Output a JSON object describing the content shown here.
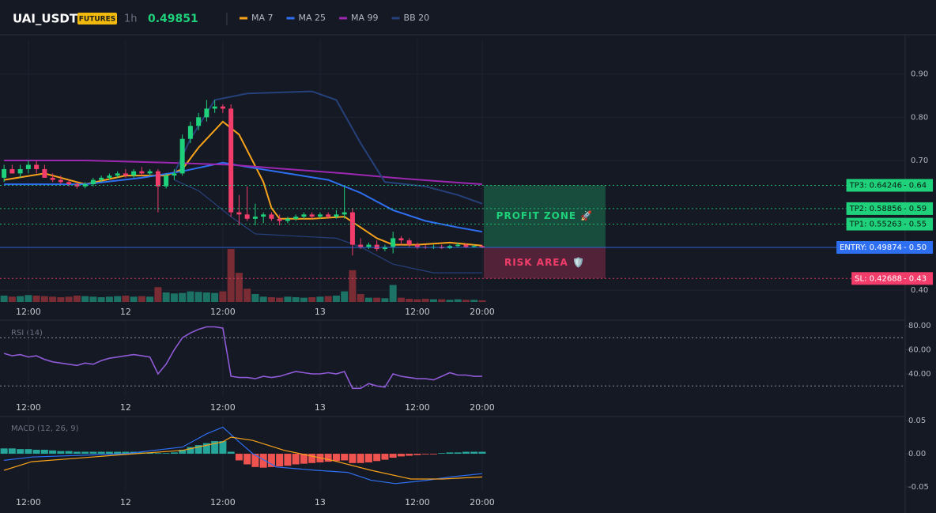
{
  "chart_data": [
    {
      "type": "candlestick",
      "title": "UAI_USDT",
      "badge": "FUTURES",
      "interval": "1h",
      "last_price": 0.49851,
      "x": [
        0,
        1,
        2,
        3,
        4,
        5,
        6,
        7,
        8,
        9,
        10,
        11,
        12,
        13,
        14,
        15,
        16,
        17,
        18,
        19,
        20,
        21,
        22,
        23,
        24,
        25,
        26,
        27,
        28,
        29,
        30,
        31,
        32,
        33,
        34,
        35,
        36,
        37,
        38,
        39,
        40,
        41,
        42,
        43,
        44,
        45,
        46,
        47,
        48,
        49,
        50,
        51,
        52,
        53,
        54,
        55,
        56,
        57,
        58,
        59
      ],
      "open": [
        0.66,
        0.68,
        0.67,
        0.68,
        0.69,
        0.68,
        0.66,
        0.655,
        0.65,
        0.645,
        0.64,
        0.645,
        0.655,
        0.66,
        0.665,
        0.67,
        0.665,
        0.675,
        0.67,
        0.675,
        0.64,
        0.665,
        0.67,
        0.75,
        0.78,
        0.8,
        0.82,
        0.825,
        0.82,
        0.58,
        0.575,
        0.565,
        0.57,
        0.575,
        0.565,
        0.56,
        0.565,
        0.57,
        0.575,
        0.57,
        0.575,
        0.57,
        0.575,
        0.58,
        0.505,
        0.5,
        0.505,
        0.495,
        0.5,
        0.52,
        0.515,
        0.505,
        0.5,
        0.498,
        0.5,
        0.497,
        0.502,
        0.505,
        0.5,
        0.502
      ],
      "high": [
        0.69,
        0.69,
        0.69,
        0.7,
        0.7,
        0.69,
        0.67,
        0.665,
        0.655,
        0.65,
        0.65,
        0.66,
        0.665,
        0.67,
        0.675,
        0.68,
        0.68,
        0.685,
        0.68,
        0.68,
        0.67,
        0.68,
        0.76,
        0.79,
        0.81,
        0.84,
        0.84,
        0.83,
        0.83,
        0.62,
        0.64,
        0.6,
        0.58,
        0.58,
        0.575,
        0.57,
        0.575,
        0.58,
        0.58,
        0.58,
        0.58,
        0.585,
        0.64,
        0.59,
        0.52,
        0.51,
        0.515,
        0.505,
        0.535,
        0.525,
        0.52,
        0.51,
        0.505,
        0.505,
        0.505,
        0.505,
        0.51,
        0.508,
        0.505,
        0.505
      ],
      "low": [
        0.65,
        0.67,
        0.66,
        0.67,
        0.67,
        0.66,
        0.65,
        0.645,
        0.64,
        0.635,
        0.635,
        0.64,
        0.65,
        0.655,
        0.66,
        0.66,
        0.66,
        0.665,
        0.665,
        0.58,
        0.635,
        0.655,
        0.665,
        0.74,
        0.77,
        0.79,
        0.81,
        0.81,
        0.57,
        0.55,
        0.56,
        0.55,
        0.555,
        0.56,
        0.55,
        0.555,
        0.56,
        0.565,
        0.565,
        0.565,
        0.565,
        0.565,
        0.565,
        0.48,
        0.495,
        0.495,
        0.49,
        0.49,
        0.485,
        0.505,
        0.5,
        0.495,
        0.495,
        0.495,
        0.495,
        0.495,
        0.498,
        0.497,
        0.498,
        0.497
      ],
      "close": [
        0.68,
        0.67,
        0.68,
        0.69,
        0.68,
        0.66,
        0.655,
        0.65,
        0.645,
        0.64,
        0.645,
        0.655,
        0.66,
        0.665,
        0.67,
        0.665,
        0.675,
        0.67,
        0.675,
        0.64,
        0.665,
        0.67,
        0.75,
        0.78,
        0.8,
        0.82,
        0.825,
        0.82,
        0.58,
        0.575,
        0.565,
        0.57,
        0.575,
        0.565,
        0.56,
        0.565,
        0.57,
        0.575,
        0.57,
        0.575,
        0.57,
        0.575,
        0.58,
        0.505,
        0.5,
        0.505,
        0.495,
        0.5,
        0.52,
        0.515,
        0.505,
        0.5,
        0.498,
        0.5,
        0.497,
        0.502,
        0.505,
        0.5,
        0.502,
        0.4985
      ],
      "volume": [
        12,
        10,
        11,
        13,
        12,
        11,
        10,
        9,
        10,
        12,
        11,
        10,
        9,
        10,
        11,
        12,
        10,
        11,
        10,
        28,
        18,
        16,
        17,
        20,
        19,
        18,
        17,
        20,
        100,
        55,
        25,
        15,
        10,
        9,
        8,
        10,
        9,
        8,
        9,
        10,
        11,
        12,
        20,
        60,
        15,
        8,
        8,
        7,
        32,
        8,
        6,
        5,
        6,
        5,
        5,
        4,
        5,
        4,
        4,
        3
      ],
      "up_color": "#1fd17a",
      "down_color": "#f23d6b",
      "volume_up_color": "#1d7266",
      "volume_down_color": "#7a2c35",
      "xlim": [
        -0.5,
        111
      ],
      "ylim": [
        0.3725,
        0.98
      ],
      "vlim": [
        0,
        100
      ],
      "xticks": [
        {
          "value": 3,
          "label": "12:00"
        },
        {
          "value": 15,
          "label": "12"
        },
        {
          "value": 27,
          "label": "12:00"
        },
        {
          "value": 39,
          "label": "13"
        },
        {
          "value": 51,
          "label": "12:00"
        },
        {
          "value": 59,
          "label": "20:00"
        }
      ],
      "yticks": [
        {
          "value": 0.4,
          "label": "0.40"
        },
        {
          "value": 0.7,
          "label": "0.70"
        },
        {
          "value": 0.8,
          "label": "0.80"
        },
        {
          "value": 0.9,
          "label": "0.90"
        }
      ],
      "grid": true,
      "series": [
        {
          "name": "MA 7",
          "color": "#f7a21b",
          "x": [
            0,
            5,
            10,
            15,
            20,
            22,
            24,
            27,
            29,
            32,
            33,
            34,
            38,
            42,
            44,
            46,
            48,
            51,
            55,
            59
          ],
          "values": [
            0.655,
            0.67,
            0.645,
            0.665,
            0.665,
            0.68,
            0.73,
            0.79,
            0.76,
            0.65,
            0.59,
            0.565,
            0.565,
            0.57,
            0.545,
            0.52,
            0.505,
            0.505,
            0.51,
            0.503
          ]
        },
        {
          "name": "MA 25",
          "color": "#2e6ff2",
          "x": [
            0,
            10,
            17,
            22,
            27,
            30,
            35,
            40,
            44,
            48,
            52,
            56,
            59
          ],
          "values": [
            0.645,
            0.645,
            0.66,
            0.675,
            0.695,
            0.685,
            0.67,
            0.655,
            0.625,
            0.585,
            0.56,
            0.545,
            0.535
          ]
        },
        {
          "name": "MA 99",
          "color": "#9c27b0",
          "x": [
            0,
            10,
            20,
            28,
            35,
            42,
            48,
            55,
            59
          ],
          "values": [
            0.7,
            0.7,
            0.695,
            0.69,
            0.68,
            0.67,
            0.66,
            0.65,
            0.645
          ]
        },
        {
          "name": "BB 20",
          "color": "#26407a",
          "x": [
            21,
            23,
            26,
            30,
            38,
            41,
            44,
            47,
            52,
            56,
            59
          ],
          "values": [
            0.67,
            0.75,
            0.84,
            0.855,
            0.86,
            0.84,
            0.74,
            0.65,
            0.64,
            0.62,
            0.6
          ],
          "lower_x": [
            21,
            24,
            28,
            31,
            36,
            41,
            44,
            48,
            53,
            59
          ],
          "lower_values": [
            0.655,
            0.63,
            0.57,
            0.53,
            0.525,
            0.52,
            0.5,
            0.46,
            0.44,
            0.44
          ]
        }
      ],
      "levels": [
        {
          "label": "TP3: 0.64246",
          "axis_label": "- 0.64",
          "value": 0.64246,
          "color": "#1fd17a",
          "style": "dotted"
        },
        {
          "label": "TP2: 0.58856",
          "axis_label": "- 0.59",
          "value": 0.58856,
          "color": "#1fd17a",
          "style": "dotted"
        },
        {
          "label": "TP1: 0.55263",
          "axis_label": "- 0.55",
          "value": 0.55263,
          "color": "#1fd17a",
          "style": "dotted"
        },
        {
          "label": "ENTRY: 0.49874",
          "axis_label": "- 0.50",
          "value": 0.49874,
          "color": "#2e6ff2",
          "style": "solid"
        },
        {
          "label": "SL: 0.42688",
          "axis_label": "- 0.43",
          "value": 0.42688,
          "color": "#f23d6b",
          "style": "dotted"
        }
      ],
      "zones": [
        {
          "label": "PROFIT ZONE 🚀",
          "from": 0.64246,
          "to": 0.49874,
          "color": "#1fd17a"
        },
        {
          "label": "RISK AREA 🛡️",
          "from": 0.49874,
          "to": 0.42688,
          "color": "#f23d6b"
        }
      ]
    },
    {
      "type": "line",
      "title": "RSI (14)",
      "color": "#8e5ad6",
      "values": [
        57,
        55,
        56,
        54,
        55,
        52,
        50,
        49,
        48,
        47,
        49,
        48,
        51,
        53,
        54,
        55,
        56,
        55,
        54,
        40,
        48,
        60,
        70,
        74,
        77,
        79,
        79,
        78,
        38,
        37,
        37,
        36,
        38,
        37,
        38,
        40,
        42,
        41,
        40,
        40,
        41,
        40,
        42,
        28,
        28,
        32,
        30,
        29,
        40,
        38,
        37,
        36,
        36,
        35,
        38,
        41,
        39,
        39,
        38,
        38
      ],
      "ylim": [
        21,
        84.6
      ],
      "bands": [
        70,
        30
      ],
      "yticks": [
        {
          "value": 80,
          "label": "80.00"
        },
        {
          "value": 60,
          "label": "60.00"
        },
        {
          "value": 40,
          "label": "40.00"
        }
      ]
    },
    {
      "type": "macd",
      "title": "MACD (12, 26, 9)",
      "histogram": [
        0.008,
        0.008,
        0.007,
        0.007,
        0.006,
        0.006,
        0.005,
        0.004,
        0.004,
        0.003,
        0.003,
        0.003,
        0.003,
        0.003,
        0.003,
        0.003,
        0.003,
        0.002,
        0.002,
        0.001,
        0.001,
        0.002,
        0.006,
        0.01,
        0.013,
        0.016,
        0.019,
        0.019,
        0.003,
        -0.01,
        -0.016,
        -0.02,
        -0.021,
        -0.02,
        -0.019,
        -0.018,
        -0.016,
        -0.015,
        -0.014,
        -0.013,
        -0.012,
        -0.011,
        -0.01,
        -0.014,
        -0.014,
        -0.013,
        -0.011,
        -0.009,
        -0.006,
        -0.004,
        -0.003,
        -0.002,
        -0.001,
        -0.001,
        0.001,
        0.002,
        0.002,
        0.003,
        0.003,
        0.003
      ],
      "pos_color": "#26a69a",
      "neg_color": "#ef5350",
      "lines": [
        {
          "color": "#2e6ff2",
          "x": [
            0,
            3.4,
            15,
            22,
            25,
            27,
            28.8,
            30.7,
            33.6,
            38.5,
            42.4,
            45.3,
            48.3,
            52.2,
            55.1,
            59
          ],
          "values": [
            -0.01,
            -0.005,
            0,
            0.01,
            0.03,
            0.04,
            0.02,
            0,
            -0.02,
            -0.025,
            -0.028,
            -0.04,
            -0.045,
            -0.04,
            -0.035,
            -0.03
          ]
        },
        {
          "color": "#f7a21b",
          "x": [
            0,
            3.4,
            15,
            22,
            27,
            28,
            30.7,
            34.6,
            40.5,
            45.3,
            50.2,
            54.1,
            59
          ],
          "values": [
            -0.025,
            -0.012,
            -0.001,
            0.005,
            0.018,
            0.025,
            0.02,
            0.005,
            -0.01,
            -0.025,
            -0.038,
            -0.038,
            -0.035
          ]
        }
      ],
      "ylim": [
        -0.0571,
        0.0548
      ],
      "yticks": [
        {
          "value": 0.05,
          "label": "0.05"
        },
        {
          "value": 0,
          "label": "0.00"
        },
        {
          "value": -0.05,
          "label": "-0.05"
        }
      ]
    }
  ]
}
